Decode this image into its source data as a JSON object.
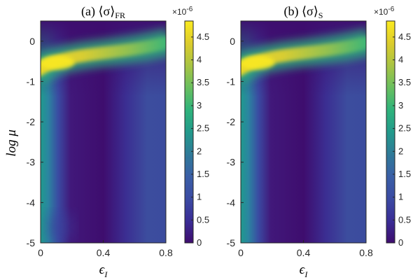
{
  "chart_data": [
    {
      "type": "heatmap",
      "title": {
        "prefix": "(a) ⟨σ⟩",
        "subscript": "FR"
      },
      "xlabel": {
        "symbol": "ϵ",
        "subscript": "I"
      },
      "ylabel": "log μ",
      "xlim": [
        0,
        0.8
      ],
      "ylim": [
        -5,
        0.5
      ],
      "xticks": [
        "0",
        "0.4",
        "0.8"
      ],
      "yticks": [
        "-5",
        "-4",
        "-3",
        "-2",
        "-1",
        "0"
      ],
      "colormap": "parula",
      "colorbar": {
        "range": [
          0,
          4.85e-06
        ],
        "ticks": [
          "0",
          "0.5",
          "1",
          "1.5",
          "2",
          "2.5",
          "3",
          "3.5",
          "4",
          "4.5"
        ],
        "multiplier": "×10",
        "exponent": "-6"
      },
      "features": [
        {
          "description": "bright ridge",
          "eps": [
            0.0,
            0.8
          ],
          "logmu": [
            -0.6,
            -0.05
          ],
          "value": 4.7e-06
        },
        {
          "description": "band at low eps",
          "eps": 0.0,
          "value": 3e-06
        },
        {
          "description": "band at eps 0.8",
          "eps": 0.8,
          "value": 1.3e-06
        }
      ]
    },
    {
      "type": "heatmap",
      "title": {
        "prefix": "(b) ⟨σ⟩",
        "subscript": "S"
      },
      "xlabel": {
        "symbol": "ϵ",
        "subscript": "I"
      },
      "ylabel": "",
      "xlim": [
        0,
        0.8
      ],
      "ylim": [
        -5,
        0.5
      ],
      "xticks": [
        "0",
        "0.4",
        "0.8"
      ],
      "yticks": [
        "-5",
        "-4",
        "-3",
        "-2",
        "-1",
        "0"
      ],
      "colormap": "parula",
      "colorbar": {
        "range": [
          0,
          4.85e-06
        ],
        "ticks": [
          "0",
          "0.5",
          "1",
          "1.5",
          "2",
          "2.5",
          "3",
          "3.5",
          "4",
          "4.5"
        ],
        "multiplier": "×10",
        "exponent": "-6"
      },
      "features": [
        {
          "description": "bright ridge",
          "eps": [
            0.0,
            0.8
          ],
          "logmu": [
            -0.6,
            -0.05
          ],
          "value": 4.7e-06
        },
        {
          "description": "band at low eps",
          "eps": 0.0,
          "value": 3e-06
        },
        {
          "description": "band at eps 0.8",
          "eps": 0.8,
          "value": 1.3e-06
        }
      ]
    }
  ]
}
